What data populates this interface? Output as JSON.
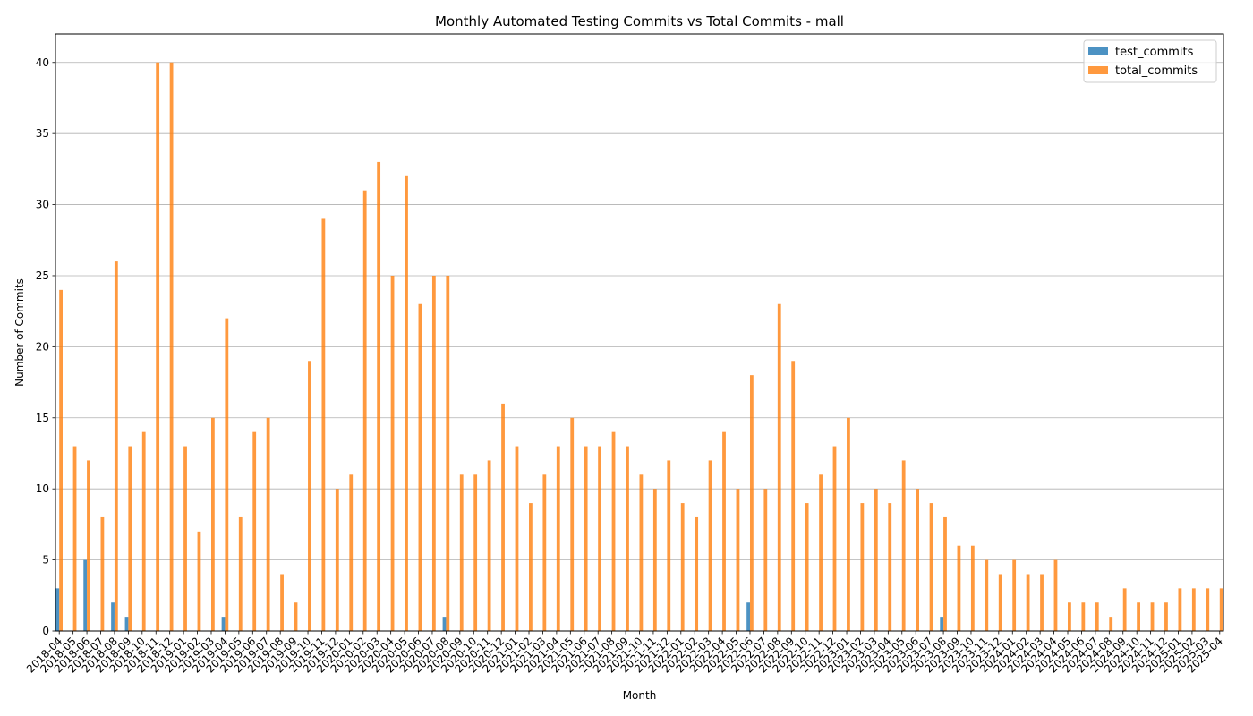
{
  "chart_data": {
    "type": "bar",
    "title": "Monthly Automated Testing Commits vs Total Commits - mall",
    "xlabel": "Month",
    "ylabel": "Number of Commits",
    "ylim": [
      0,
      42
    ],
    "yticks": [
      0,
      5,
      10,
      15,
      20,
      25,
      30,
      35,
      40
    ],
    "grid": "horizontal",
    "legend_position": "top-right",
    "categories": [
      "2018-04",
      "2018-05",
      "2018-06",
      "2018-07",
      "2018-08",
      "2018-09",
      "2018-10",
      "2018-11",
      "2018-12",
      "2019-01",
      "2019-02",
      "2019-03",
      "2019-04",
      "2019-05",
      "2019-06",
      "2019-07",
      "2019-08",
      "2019-09",
      "2019-10",
      "2019-11",
      "2019-12",
      "2020-01",
      "2020-02",
      "2020-03",
      "2020-04",
      "2020-05",
      "2020-06",
      "2020-07",
      "2020-08",
      "2020-09",
      "2020-10",
      "2020-11",
      "2020-12",
      "2021-01",
      "2021-02",
      "2021-03",
      "2021-04",
      "2021-05",
      "2021-06",
      "2021-07",
      "2021-08",
      "2021-09",
      "2021-10",
      "2021-11",
      "2021-12",
      "2022-01",
      "2022-02",
      "2022-03",
      "2022-04",
      "2022-05",
      "2022-06",
      "2022-07",
      "2022-08",
      "2022-09",
      "2022-10",
      "2022-11",
      "2022-12",
      "2023-01",
      "2023-02",
      "2023-03",
      "2023-04",
      "2023-05",
      "2023-06",
      "2023-07",
      "2023-08",
      "2023-09",
      "2023-10",
      "2023-11",
      "2023-12",
      "2024-01",
      "2024-02",
      "2024-03",
      "2024-04",
      "2024-05",
      "2024-06",
      "2024-07",
      "2024-08",
      "2024-09",
      "2024-10",
      "2024-11",
      "2024-12",
      "2025-01",
      "2025-02",
      "2025-03",
      "2025-04"
    ],
    "series": [
      {
        "name": "test_commits",
        "color": "#1f77b4",
        "values": [
          3,
          0,
          5,
          0,
          2,
          1,
          0,
          0,
          0,
          0,
          0,
          0,
          1,
          0,
          0,
          0,
          0,
          0,
          0,
          0,
          0,
          0,
          0,
          0,
          0,
          0,
          0,
          0,
          1,
          0,
          0,
          0,
          0,
          0,
          0,
          0,
          0,
          0,
          0,
          0,
          0,
          0,
          0,
          0,
          0,
          0,
          0,
          0,
          0,
          0,
          2,
          0,
          0,
          0,
          0,
          0,
          0,
          0,
          0,
          0,
          0,
          0,
          0,
          0,
          1,
          0,
          0,
          0,
          0,
          0,
          0,
          0,
          0,
          0,
          0,
          0,
          0,
          0,
          0,
          0,
          0,
          0,
          0,
          0,
          0
        ]
      },
      {
        "name": "total_commits",
        "color": "#ff7f0e",
        "values": [
          24,
          13,
          12,
          8,
          26,
          13,
          14,
          40,
          40,
          13,
          7,
          15,
          22,
          8,
          14,
          15,
          4,
          2,
          19,
          29,
          10,
          11,
          31,
          33,
          25,
          32,
          23,
          25,
          25,
          11,
          11,
          12,
          16,
          13,
          9,
          11,
          13,
          15,
          13,
          13,
          14,
          13,
          11,
          10,
          12,
          9,
          8,
          12,
          14,
          10,
          18,
          10,
          23,
          19,
          9,
          11,
          13,
          15,
          9,
          10,
          9,
          12,
          10,
          9,
          8,
          6,
          6,
          5,
          4,
          5,
          4,
          4,
          5,
          2,
          2,
          2,
          1,
          3,
          2,
          2,
          2,
          3,
          3,
          3,
          3
        ]
      }
    ]
  }
}
